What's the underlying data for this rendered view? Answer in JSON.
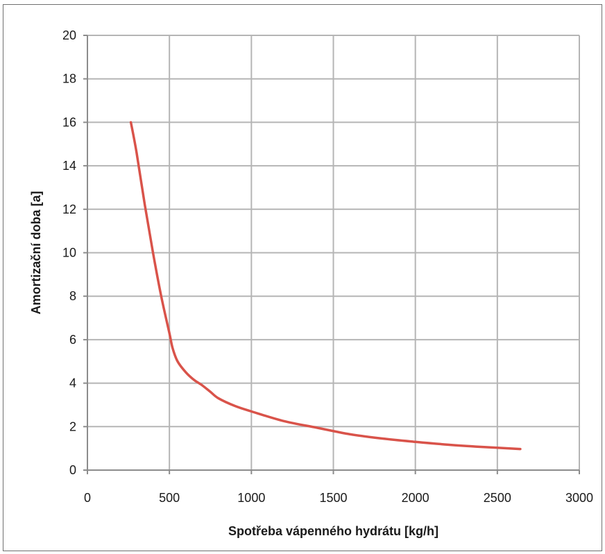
{
  "chart_data": {
    "type": "line",
    "title": "",
    "xlabel": "Spotřeba vápenného hydrátu [kg/h]",
    "ylabel": "Amortizační doba [a]",
    "xlim": [
      0,
      3000
    ],
    "ylim": [
      0,
      20
    ],
    "x_ticks": [
      0,
      500,
      1000,
      1500,
      2000,
      2500,
      3000
    ],
    "y_ticks": [
      0,
      2,
      4,
      6,
      8,
      10,
      12,
      14,
      16,
      18,
      20
    ],
    "x_tick_labels": [
      "0",
      "500",
      "1000",
      "1500",
      "2000",
      "2500",
      "3000"
    ],
    "y_tick_labels": [
      "0",
      "2",
      "4",
      "6",
      "8",
      "10",
      "12",
      "14",
      "16",
      "18",
      "20"
    ],
    "grid": true,
    "legend": "none",
    "series": [
      {
        "color": "#d9534a",
        "x": [
          265,
          300,
          350,
          400,
          450,
          500,
          520,
          550,
          600,
          650,
          700,
          750,
          800,
          900,
          1000,
          1200,
          1400,
          1600,
          1800,
          2000,
          2200,
          2400,
          2640
        ],
        "y": [
          16.0,
          14.6,
          12.2,
          10.0,
          8.0,
          6.3,
          5.6,
          5.0,
          4.5,
          4.15,
          3.9,
          3.6,
          3.3,
          2.95,
          2.7,
          2.25,
          1.95,
          1.65,
          1.45,
          1.3,
          1.17,
          1.07,
          0.97
        ]
      }
    ]
  }
}
